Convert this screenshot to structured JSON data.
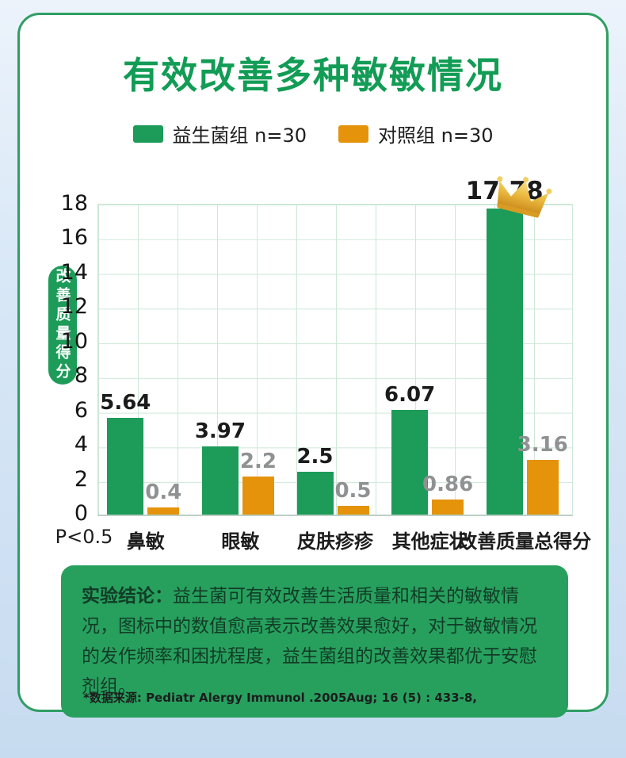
{
  "title": "有效改善多种敏敏情况",
  "chart_data": {
    "type": "bar",
    "categories": [
      "鼻敏",
      "眼敏",
      "皮肤疹疹",
      "其他症状",
      "改善质量总得分"
    ],
    "series": [
      {
        "name": "益生菌组 n=30",
        "color": "#1d9b58",
        "values": [
          5.64,
          3.97,
          2.5,
          6.07,
          17.78
        ]
      },
      {
        "name": "对照组 n=30",
        "color": "#e4930b",
        "values": [
          0.4,
          2.2,
          0.5,
          0.86,
          3.16
        ]
      }
    ],
    "ylabel": "改善质量得分",
    "ylim": [
      0,
      18
    ],
    "ytick_step": 2,
    "grid": true,
    "legend_position": "top",
    "pvalue_note": "P<0.5",
    "crown_on_max_of_series": 0
  },
  "conclusion": {
    "lead": "实验结论：",
    "body": "益生菌可有效改善生活质量和相关的敏敏情况，图标中的数值愈高表示改善效果愈好，对于敏敏情况的发作频率和困扰程度，益生菌组的改善效果都优于安慰剂组。"
  },
  "footnote": "*数据来源: Pediatr Alergy Immunol .2005Aug; 16 (5) : 433-8,"
}
